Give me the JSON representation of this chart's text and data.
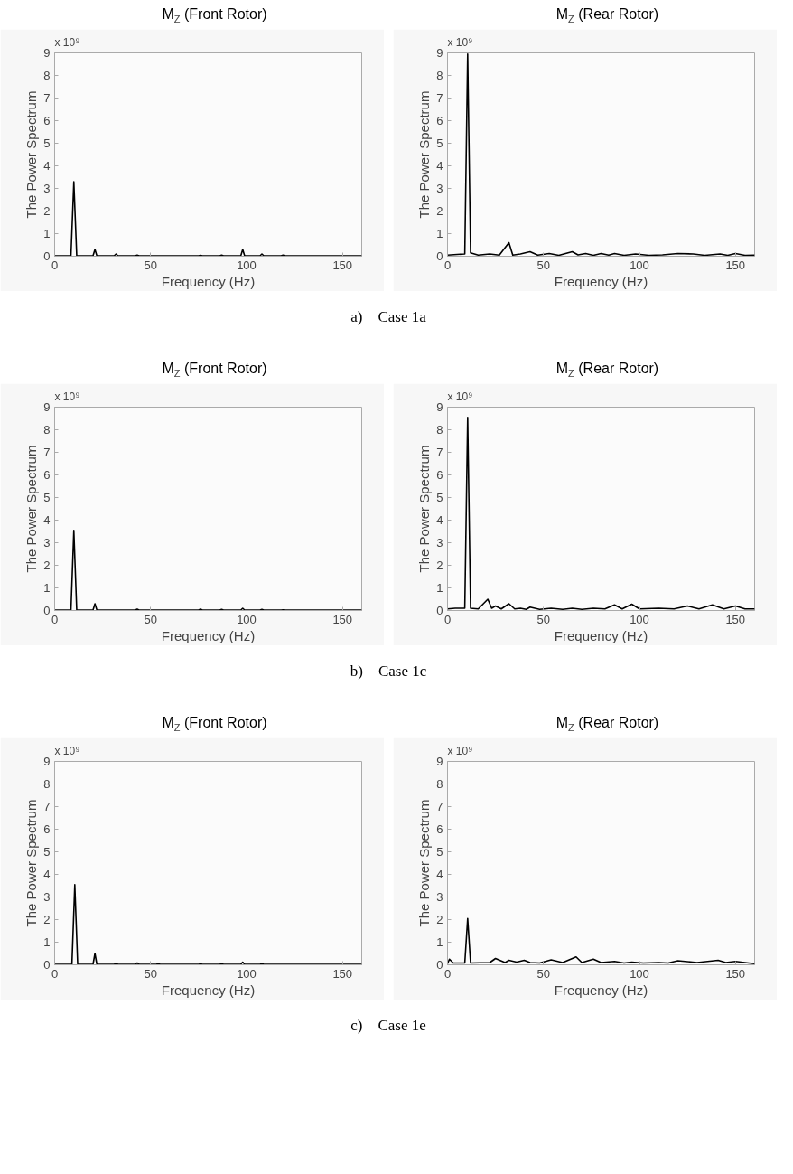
{
  "chart_data": [
    {
      "type": "line",
      "title": "M$_{Z}$ (Front Rotor)",
      "xlabel": "Frequency (Hz)",
      "ylabel": "The Power Spectrum",
      "annotations": [
        "x 10⁹",
        "a)    Case 1a"
      ],
      "xlim": [
        0,
        160
      ],
      "xticks": [
        0,
        50,
        100,
        150
      ],
      "ylim": [
        0,
        9
      ],
      "yticks": [
        0,
        1,
        2,
        3,
        4,
        5,
        6,
        7,
        8,
        9
      ],
      "grid": false,
      "series": [
        {
          "color": "#000000",
          "x": [
            0,
            8.5,
            10,
            11.5,
            20,
            21,
            22,
            31,
            32,
            33,
            42,
            43,
            44,
            75,
            76,
            77,
            86,
            87,
            88,
            97,
            98,
            99,
            107,
            108,
            109,
            118,
            119,
            120,
            160
          ],
          "values": [
            0.02,
            0.02,
            3.3,
            0.02,
            0.02,
            0.3,
            0.02,
            0.02,
            0.1,
            0.02,
            0.02,
            0.05,
            0.02,
            0.02,
            0.04,
            0.02,
            0.02,
            0.05,
            0.02,
            0.02,
            0.3,
            0.02,
            0.02,
            0.1,
            0.02,
            0.02,
            0.05,
            0.02,
            0.02
          ]
        }
      ]
    },
    {
      "type": "line",
      "title": "M$_{Z}$ (Rear Rotor)",
      "xlabel": "Frequency (Hz)",
      "ylabel": "The Power Spectrum",
      "annotations": [
        "x 10⁹"
      ],
      "xlim": [
        0,
        160
      ],
      "xticks": [
        0,
        50,
        100,
        150
      ],
      "ylim": [
        0,
        9
      ],
      "yticks": [
        0,
        1,
        2,
        3,
        4,
        5,
        6,
        7,
        8,
        9
      ],
      "grid": false,
      "series": [
        {
          "color": "#000000",
          "x": [
            0,
            5,
            9,
            10.5,
            12,
            16,
            22,
            27,
            32,
            34,
            38,
            43,
            47,
            53,
            58,
            65,
            68,
            72,
            76,
            80,
            84,
            87,
            92,
            98,
            105,
            112,
            120,
            128,
            134,
            142,
            146,
            150,
            155,
            160
          ],
          "values": [
            0.05,
            0.08,
            0.1,
            8.95,
            0.15,
            0.05,
            0.1,
            0.05,
            0.6,
            0.05,
            0.1,
            0.2,
            0.05,
            0.12,
            0.04,
            0.2,
            0.06,
            0.12,
            0.04,
            0.12,
            0.05,
            0.12,
            0.04,
            0.1,
            0.04,
            0.06,
            0.12,
            0.1,
            0.04,
            0.1,
            0.04,
            0.12,
            0.04,
            0.05
          ]
        }
      ]
    },
    {
      "type": "line",
      "title": "M$_{Z}$ (Front Rotor)",
      "xlabel": "Frequency (Hz)",
      "ylabel": "The Power Spectrum",
      "annotations": [
        "x 10⁹",
        "b)    Case 1c"
      ],
      "xlim": [
        0,
        160
      ],
      "xticks": [
        0,
        50,
        100,
        150
      ],
      "ylim": [
        0,
        9
      ],
      "yticks": [
        0,
        1,
        2,
        3,
        4,
        5,
        6,
        7,
        8,
        9
      ],
      "grid": false,
      "series": [
        {
          "color": "#000000",
          "x": [
            0,
            8.5,
            10,
            11.5,
            20,
            21,
            22,
            42,
            43,
            44,
            75,
            76,
            77,
            86,
            87,
            88,
            97,
            98,
            99,
            107,
            108,
            109,
            118,
            119,
            120,
            160
          ],
          "values": [
            0.02,
            0.02,
            3.55,
            0.02,
            0.02,
            0.3,
            0.02,
            0.02,
            0.06,
            0.02,
            0.02,
            0.06,
            0.02,
            0.02,
            0.05,
            0.02,
            0.02,
            0.1,
            0.02,
            0.02,
            0.05,
            0.02,
            0.02,
            0.03,
            0.02,
            0.02
          ]
        }
      ]
    },
    {
      "type": "line",
      "title": "M$_{Z}$ (Rear Rotor)",
      "xlabel": "Frequency (Hz)",
      "ylabel": "The Power Spectrum",
      "annotations": [
        "x 10⁹"
      ],
      "xlim": [
        0,
        160
      ],
      "xticks": [
        0,
        50,
        100,
        150
      ],
      "ylim": [
        0,
        9
      ],
      "yticks": [
        0,
        1,
        2,
        3,
        4,
        5,
        6,
        7,
        8,
        9
      ],
      "grid": false,
      "series": [
        {
          "color": "#000000",
          "x": [
            0,
            4,
            9,
            10.5,
            12,
            16,
            21,
            23,
            25,
            28,
            32,
            35,
            38,
            41,
            43,
            48,
            54,
            60,
            65,
            70,
            76,
            82,
            87,
            91,
            96,
            100,
            110,
            118,
            125,
            131,
            138,
            144,
            150,
            155,
            160
          ],
          "values": [
            0.07,
            0.1,
            0.1,
            8.55,
            0.1,
            0.07,
            0.5,
            0.1,
            0.2,
            0.07,
            0.3,
            0.07,
            0.1,
            0.05,
            0.15,
            0.05,
            0.1,
            0.05,
            0.1,
            0.05,
            0.1,
            0.07,
            0.25,
            0.07,
            0.28,
            0.07,
            0.1,
            0.07,
            0.2,
            0.07,
            0.25,
            0.07,
            0.2,
            0.07,
            0.07
          ]
        }
      ]
    },
    {
      "type": "line",
      "title": "M$_{Z}$ (Front Rotor)",
      "xlabel": "Frequency (Hz)",
      "ylabel": "The Power Spectrum",
      "annotations": [
        "x 10⁹",
        "c)    Case 1e"
      ],
      "xlim": [
        0,
        160
      ],
      "xticks": [
        0,
        50,
        100,
        150
      ],
      "ylim": [
        0,
        9
      ],
      "yticks": [
        0,
        1,
        2,
        3,
        4,
        5,
        6,
        7,
        8,
        9
      ],
      "grid": false,
      "series": [
        {
          "color": "#000000",
          "x": [
            0,
            9,
            10.5,
            12,
            20,
            21,
            22,
            31,
            32,
            33,
            42,
            43,
            44,
            53,
            54,
            55,
            75,
            76,
            77,
            86,
            87,
            88,
            97,
            98,
            99,
            107,
            108,
            109,
            160
          ],
          "values": [
            0.02,
            0.02,
            3.55,
            0.02,
            0.02,
            0.5,
            0.02,
            0.02,
            0.06,
            0.02,
            0.02,
            0.08,
            0.02,
            0.02,
            0.05,
            0.02,
            0.02,
            0.04,
            0.02,
            0.02,
            0.05,
            0.02,
            0.02,
            0.12,
            0.02,
            0.02,
            0.05,
            0.02,
            0.02
          ]
        }
      ]
    },
    {
      "type": "line",
      "title": "M$_{Z}$ (Rear Rotor)",
      "xlabel": "Frequency (Hz)",
      "ylabel": "The Power Spectrum",
      "annotations": [
        "x 10⁹"
      ],
      "xlim": [
        0,
        160
      ],
      "xticks": [
        0,
        50,
        100,
        150
      ],
      "ylim": [
        0,
        9
      ],
      "yticks": [
        0,
        1,
        2,
        3,
        4,
        5,
        6,
        7,
        8,
        9
      ],
      "grid": false,
      "series": [
        {
          "color": "#000000",
          "x": [
            0,
            1,
            3,
            9,
            10.5,
            12,
            22,
            25,
            30,
            32,
            36,
            40,
            43,
            48,
            54,
            60,
            67,
            70,
            76,
            80,
            87,
            92,
            96,
            102,
            110,
            115,
            120,
            130,
            141,
            145,
            150,
            155,
            160
          ],
          "values": [
            0.05,
            0.25,
            0.08,
            0.08,
            2.05,
            0.08,
            0.1,
            0.28,
            0.1,
            0.2,
            0.12,
            0.2,
            0.1,
            0.08,
            0.22,
            0.1,
            0.35,
            0.1,
            0.25,
            0.1,
            0.15,
            0.08,
            0.12,
            0.08,
            0.1,
            0.08,
            0.18,
            0.1,
            0.2,
            0.1,
            0.15,
            0.1,
            0.05
          ]
        }
      ]
    }
  ]
}
